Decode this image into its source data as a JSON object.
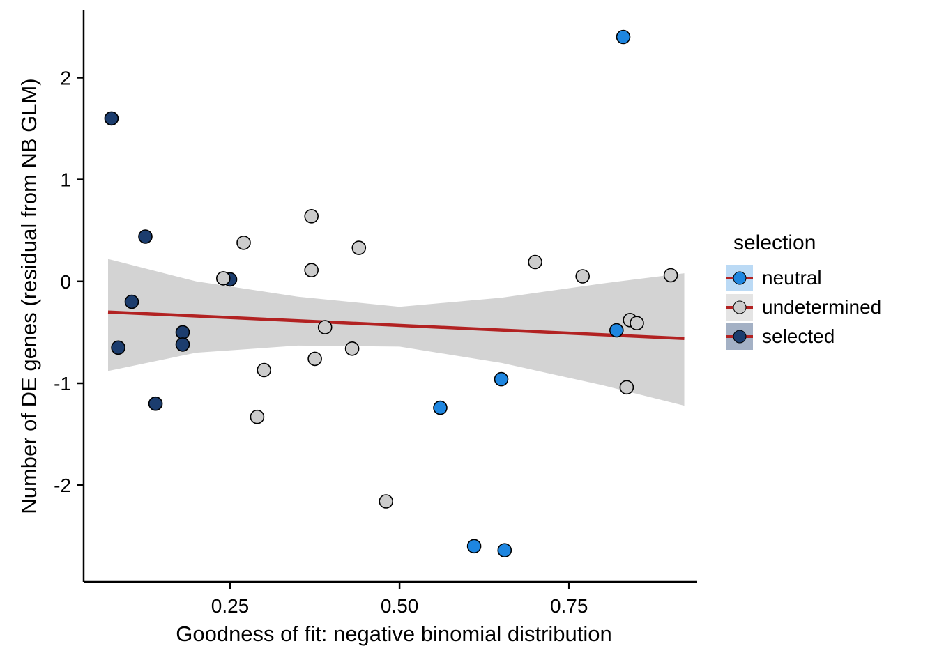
{
  "chart_data": {
    "type": "scatter",
    "xlabel": "Goodness of fit: negative binomial distribution",
    "ylabel": "Number of DE genes (residual from NB GLM)",
    "xlim": [
      0.034,
      0.939
    ],
    "ylim": [
      -2.95,
      2.66
    ],
    "xticks": [
      0.25,
      0.5,
      0.75
    ],
    "xtick_labels": [
      "0.25",
      "0.50",
      "0.75"
    ],
    "yticks": [
      -2,
      -1,
      0,
      1,
      2
    ],
    "ytick_labels": [
      "-2",
      "-1",
      "0",
      "1",
      "2"
    ],
    "grid": false,
    "legend": {
      "title": "selection",
      "position": "right",
      "entries": [
        {
          "label": "neutral",
          "color": "#1E86E0",
          "key_bg": "#BBDAF5"
        },
        {
          "label": "undetermined",
          "color": "#CCCCCC",
          "key_bg": "#E4E4E4"
        },
        {
          "label": "selected",
          "color": "#1C3D6E",
          "key_bg": "#A4B1C5"
        }
      ]
    },
    "series": [
      {
        "name": "neutral",
        "color": "#1E86E0",
        "points": [
          [
            0.83,
            2.4
          ],
          [
            0.82,
            -0.48
          ],
          [
            0.65,
            -0.96
          ],
          [
            0.56,
            -1.24
          ],
          [
            0.61,
            -2.6
          ],
          [
            0.655,
            -2.64
          ]
        ]
      },
      {
        "name": "undetermined",
        "color": "#CCCCCC",
        "points": [
          [
            0.37,
            0.64
          ],
          [
            0.27,
            0.38
          ],
          [
            0.44,
            0.33
          ],
          [
            0.37,
            0.11
          ],
          [
            0.7,
            0.19
          ],
          [
            0.77,
            0.05
          ],
          [
            0.9,
            0.06
          ],
          [
            0.24,
            0.03
          ],
          [
            0.39,
            -0.45
          ],
          [
            0.84,
            -0.38
          ],
          [
            0.85,
            -0.41
          ],
          [
            0.43,
            -0.66
          ],
          [
            0.375,
            -0.76
          ],
          [
            0.3,
            -0.87
          ],
          [
            0.835,
            -1.04
          ],
          [
            0.29,
            -1.33
          ],
          [
            0.48,
            -2.16
          ]
        ]
      },
      {
        "name": "selected",
        "color": "#1C3D6E",
        "points": [
          [
            0.075,
            1.6
          ],
          [
            0.125,
            0.44
          ],
          [
            0.105,
            -0.2
          ],
          [
            0.085,
            -0.65
          ],
          [
            0.18,
            -0.5
          ],
          [
            0.18,
            -0.62
          ],
          [
            0.14,
            -1.2
          ],
          [
            0.25,
            0.02
          ]
        ]
      }
    ],
    "smooth": {
      "color": "#B22222",
      "line": [
        [
          0.07,
          -0.3
        ],
        [
          0.92,
          -0.56
        ]
      ],
      "ribbon": {
        "fill": "#D3D3D3",
        "x": [
          0.07,
          0.2,
          0.35,
          0.5,
          0.65,
          0.8,
          0.92
        ],
        "upper": [
          0.22,
          0.0,
          -0.15,
          -0.25,
          -0.16,
          -0.02,
          0.08
        ],
        "lower": [
          -0.88,
          -0.7,
          -0.63,
          -0.64,
          -0.8,
          -1.02,
          -1.22
        ]
      }
    }
  }
}
